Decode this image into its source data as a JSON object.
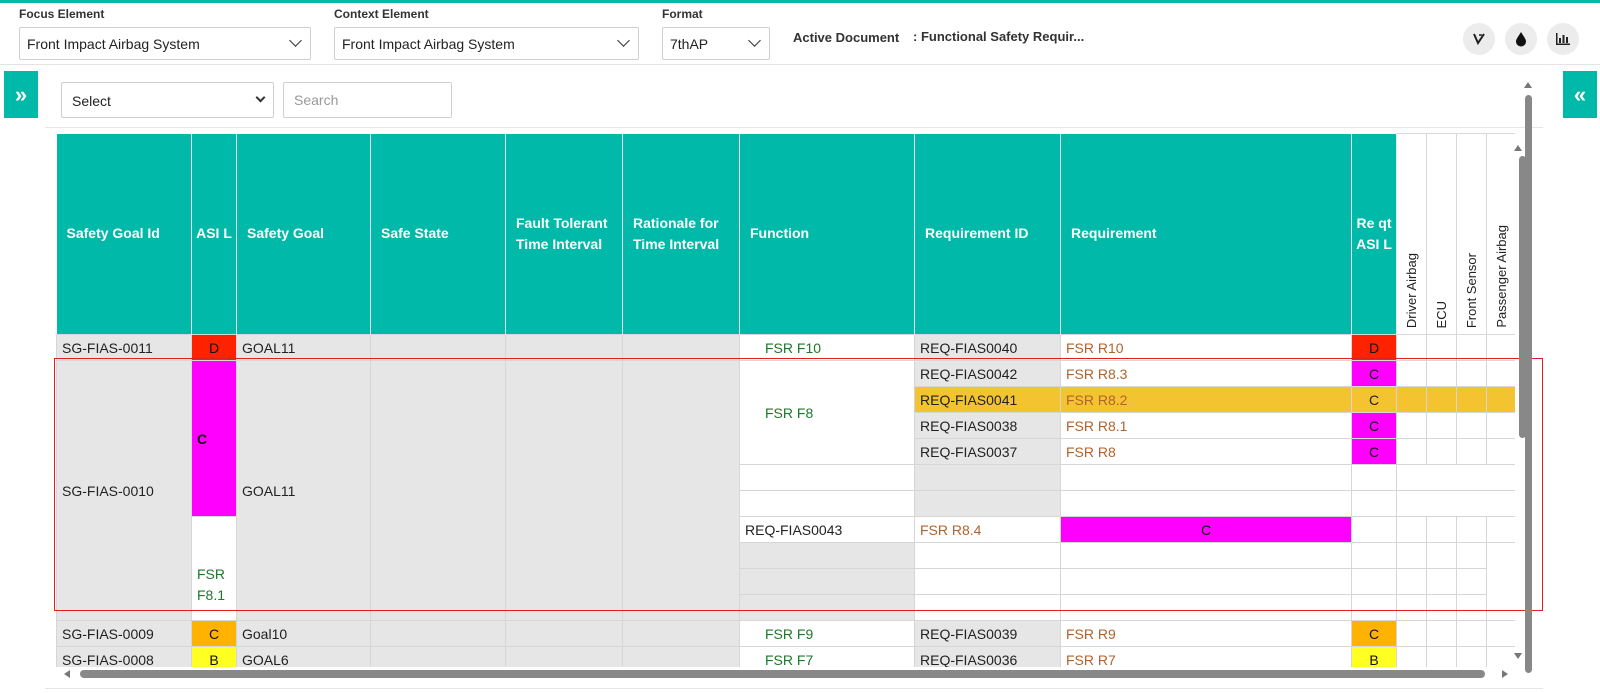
{
  "toolbar": {
    "focus_label": "Focus Element",
    "focus_value": "Front Impact Airbag System",
    "context_label": "Context Element",
    "context_value": "Front Impact Airbag System",
    "format_label": "Format",
    "format_value": "7thAP",
    "active_doc_label": "Active Document",
    "active_doc_value": ": Functional Safety Requir..."
  },
  "filter": {
    "select_value": "Select",
    "search_placeholder": "Search"
  },
  "columns": {
    "safety_goal_id": "Safety Goal Id",
    "asil": "ASI L",
    "safety_goal": "Safety Goal",
    "safe_state": "Safe State",
    "ftti": "Fault Tolerant Time Interval",
    "rationale": "Rationale for Time Interval",
    "function": "Function",
    "requirement_id": "Requirement ID",
    "requirement": "Requirement",
    "req_asil": "Re qt ASI L",
    "driver_airbag": "Driver Airbag",
    "ecu": "ECU",
    "front_sensor": "Front Sensor",
    "passenger_airbag": "Passenger Airbag"
  },
  "rows": {
    "r1": {
      "goal_id": "SG-FIAS-0011",
      "asil": "D",
      "goal": "GOAL11",
      "function": "FSR F10",
      "req_id": "REQ-FIAS0040",
      "req": "FSR R10",
      "req_asil": "D"
    },
    "r2": {
      "goal_id": "SG-FIAS-0010",
      "asil": "C",
      "goal": "GOAL11",
      "function": "FSR F8",
      "function2": "FSR F8.1",
      "items": [
        {
          "req_id": "REQ-FIAS0042",
          "req": "FSR R8.3",
          "req_asil": "C"
        },
        {
          "req_id": "REQ-FIAS0041",
          "req": "FSR R8.2",
          "req_asil": "C"
        },
        {
          "req_id": "REQ-FIAS0038",
          "req": "FSR R8.1",
          "req_asil": "C"
        },
        {
          "req_id": "REQ-FIAS0037",
          "req": "FSR R8",
          "req_asil": "C"
        },
        {
          "req_id": "REQ-FIAS0043",
          "req": "FSR R8.4",
          "req_asil": "C"
        }
      ]
    },
    "r3": {
      "goal_id": "SG-FIAS-0009",
      "asil": "C",
      "goal": "Goal10",
      "function": "FSR F9",
      "req_id": "REQ-FIAS0039",
      "req": "FSR R9",
      "req_asil": "C"
    },
    "r4": {
      "goal_id": "SG-FIAS-0008",
      "asil": "B",
      "goal": "GOAL6",
      "function": "FSR F7",
      "req_id": "REQ-FIAS0036",
      "req": "FSR R7",
      "req_asil": "B"
    }
  },
  "icons": [
    "filter-icon",
    "drop-icon",
    "chart-icon",
    "expand-left-icon",
    "expand-right-icon"
  ],
  "colors": {
    "accent": "#00b9a8",
    "asil_d": "#ff2200",
    "asil_c_magenta": "#ff00ff",
    "asil_c_orange": "#ffb300",
    "asil_b": "#ffff22",
    "highlight": "#f4c430",
    "selection_border": "#e02020"
  }
}
